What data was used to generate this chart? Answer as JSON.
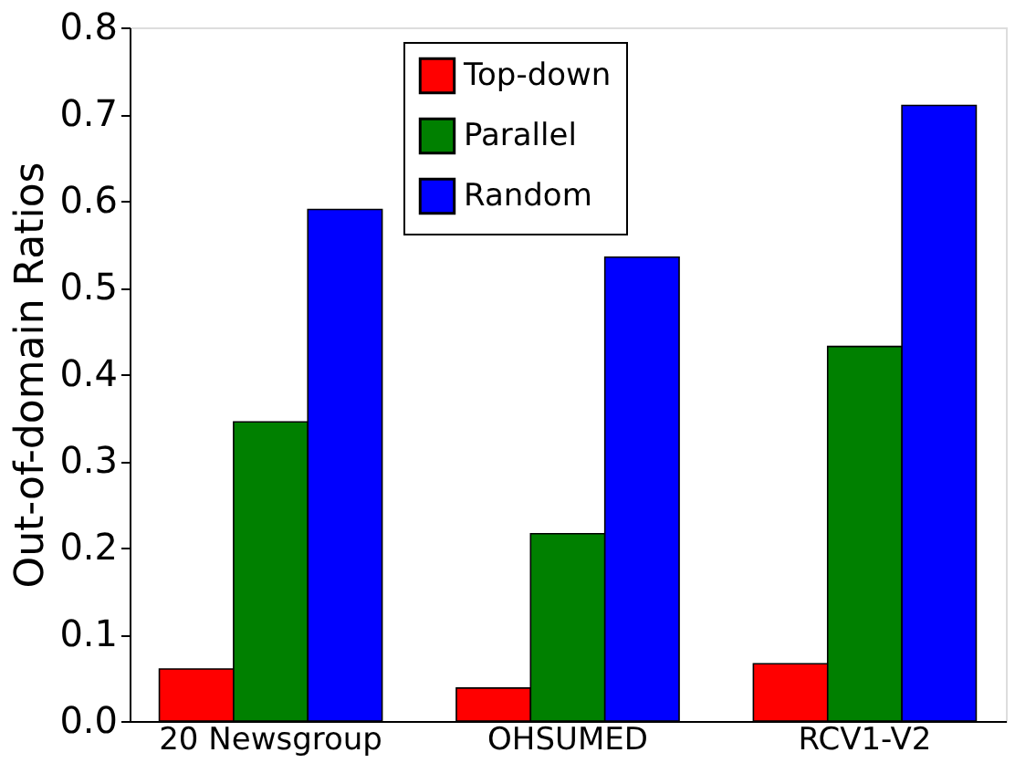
{
  "chart_data": {
    "type": "bar",
    "ylabel": "Out-of-domain Ratios",
    "categories": [
      "20 Newsgroup",
      "OHSUMED",
      "RCV1-V2"
    ],
    "series": [
      {
        "name": "Top-down",
        "color": "#ff0000",
        "values": [
          0.06,
          0.038,
          0.066
        ]
      },
      {
        "name": "Parallel",
        "color": "#008000",
        "values": [
          0.345,
          0.216,
          0.432
        ]
      },
      {
        "name": "Random",
        "color": "#0000ff",
        "values": [
          0.59,
          0.535,
          0.71
        ]
      }
    ],
    "ylim": [
      0,
      0.8
    ],
    "yticks": [
      {
        "value": 0,
        "label": "0.0"
      },
      0.1,
      0.2,
      0.3,
      0.4,
      0.5,
      0.6,
      0.7,
      0.8
    ],
    "grid": false,
    "legend": "top"
  }
}
